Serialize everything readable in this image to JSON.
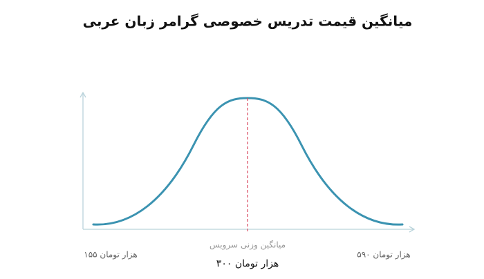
{
  "title": "میانگین قیمت تدریس خصوصی گرامر زبان عربی",
  "curve": {
    "mean_caption": "میانگین وزنی سرویس",
    "mean_label": "۳۰۰ هزار تومان",
    "min_label": "۱۵۵ هزار تومان",
    "max_label": "۵۹۰ هزار تومان"
  }
}
